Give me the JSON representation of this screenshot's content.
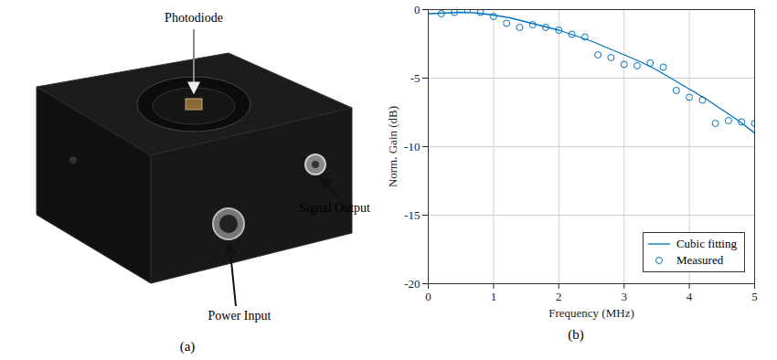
{
  "chart_data": {
    "type": "line",
    "caption": "(b)",
    "x_label": "Frequency (MHz)",
    "y_label": "Norm. Gain (dB)",
    "xlim": [
      0,
      5
    ],
    "xticks": [
      0,
      1,
      2,
      3,
      4,
      5
    ],
    "ylim": [
      -20,
      0
    ],
    "yticks": [
      -20,
      -15,
      -10,
      -5,
      0
    ],
    "grid": true,
    "legend": "lower right",
    "series": [
      {
        "name": "Cubic fitting",
        "type": "line",
        "line_style": "solid",
        "color": "#0072bd",
        "x": [
          0,
          0.25,
          0.5,
          0.75,
          1,
          1.25,
          1.5,
          1.75,
          2,
          2.25,
          2.5,
          2.75,
          3,
          3.25,
          3.5,
          3.75,
          4,
          4.25,
          4.5,
          4.75,
          5
        ],
        "values": [
          -0.3,
          -0.25,
          -0.2,
          -0.25,
          -0.4,
          -0.6,
          -0.9,
          -1.2,
          -1.5,
          -1.9,
          -2.3,
          -2.8,
          -3.3,
          -3.8,
          -4.4,
          -5.1,
          -5.8,
          -6.5,
          -7.3,
          -8.1,
          -9.0
        ]
      },
      {
        "name": "Measured",
        "type": "scatter",
        "marker": "circle",
        "color": "#0072bd",
        "x": [
          0.2,
          0.4,
          0.6,
          0.8,
          1.0,
          1.2,
          1.4,
          1.6,
          1.8,
          2.0,
          2.2,
          2.4,
          2.6,
          2.8,
          3.0,
          3.2,
          3.4,
          3.6,
          3.8,
          4.0,
          4.2,
          4.4,
          4.6,
          4.8,
          5.0
        ],
        "values": [
          -0.3,
          -0.2,
          0.0,
          -0.2,
          -0.5,
          -1.0,
          -1.3,
          -1.1,
          -1.3,
          -1.5,
          -1.8,
          -2.0,
          -3.3,
          -3.5,
          -4.0,
          -4.1,
          -3.9,
          -4.2,
          -5.9,
          -6.4,
          -6.6,
          -8.3,
          -8.1,
          -8.2,
          -8.3
        ]
      }
    ]
  },
  "photo": {
    "caption": "(a)",
    "labels": {
      "photodiode": "Photodiode",
      "signal_output": "Signal Output",
      "power_input": "Power Input"
    }
  }
}
